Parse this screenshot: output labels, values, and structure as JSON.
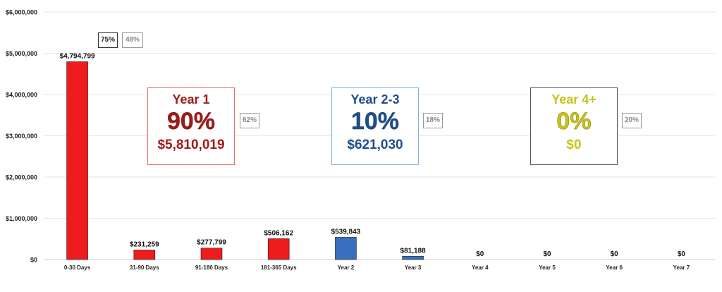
{
  "chart_data": {
    "type": "bar",
    "categories": [
      "0-30 Days",
      "31-90 Days",
      "91-180 Days",
      "181-365 Days",
      "Year 2",
      "Year 3",
      "Year 4",
      "Year 5",
      "Year 6",
      "Year 7"
    ],
    "values": [
      4794799,
      231259,
      277799,
      506162,
      539843,
      81188,
      0,
      0,
      0,
      0
    ],
    "value_labels": [
      "$4,794,799",
      "$231,259",
      "$277,799",
      "$506,162",
      "$539,843",
      "$81,188",
      "$0",
      "$0",
      "$0",
      "$0"
    ],
    "bar_colors": [
      "#ee1c1c",
      "#ee1c1c",
      "#ee1c1c",
      "#ee1c1c",
      "#3a6fc0",
      "#3a6fc0",
      "#3a6fc0",
      "#3a6fc0",
      "#3a6fc0",
      "#3a6fc0"
    ],
    "ylim": [
      0,
      6000000
    ],
    "yticks": [
      0,
      1000000,
      2000000,
      3000000,
      4000000,
      5000000,
      6000000
    ],
    "ytick_labels": [
      "$0",
      "$1,000,000",
      "$2,000,000",
      "$3,000,000",
      "$4,000,000",
      "$5,000,000",
      "$6,000,000"
    ],
    "grid": true,
    "title": "",
    "xlabel": "",
    "ylabel": ""
  },
  "summary_boxes": [
    {
      "label": "Year 1",
      "percent": "90%",
      "amount": "$5,810,019",
      "color": "#a11a1a",
      "border": "#e86a6a",
      "side_tag": "62%"
    },
    {
      "label": "Year 2-3",
      "percent": "10%",
      "amount": "$621,030",
      "color": "#1f4e8c",
      "border": "#7fb3e0",
      "side_tag": "18%"
    },
    {
      "label": "Year 4+",
      "percent": "0%",
      "amount": "$0",
      "color": "#c7c31c",
      "border": "#555555",
      "side_tag": "20%"
    }
  ],
  "top_tags": [
    "75%",
    "48%"
  ],
  "colors": {
    "red": "#ee1c1c",
    "blue": "#3a6fc0",
    "grid": "#e6e6e6"
  }
}
